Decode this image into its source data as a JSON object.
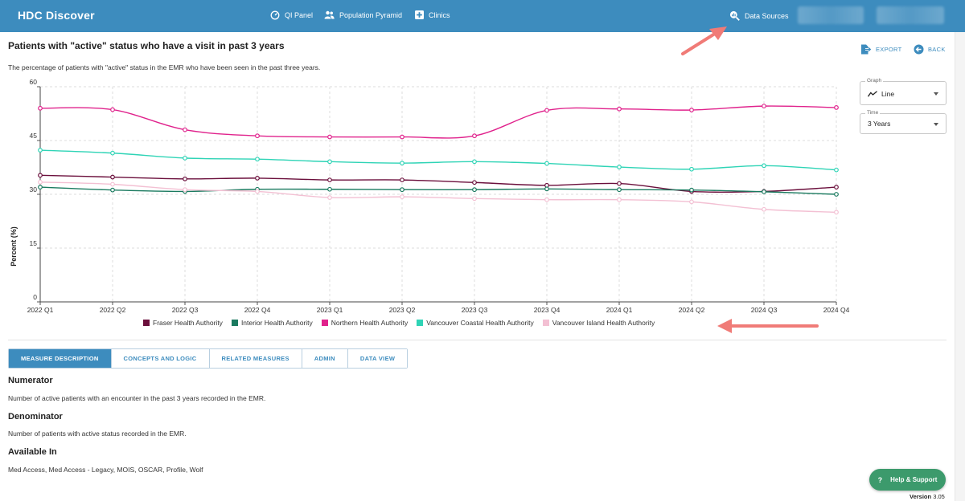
{
  "app": {
    "title": "HDC Discover"
  },
  "nav": {
    "qi_panel": "QI Panel",
    "population_pyramid": "Population Pyramid",
    "clinics": "Clinics",
    "data_sources": "Data Sources"
  },
  "page": {
    "title": "Patients with \"active\" status who have a visit in past 3 years",
    "subtitle": "The percentage of patients with \"active\" status in the EMR who have been seen in the past three years."
  },
  "actions": {
    "export": "EXPORT",
    "back": "BACK"
  },
  "controls": {
    "graph": {
      "label": "Graph",
      "value": "Line"
    },
    "time": {
      "label": "Time",
      "value": "3 Years"
    }
  },
  "chart_data": {
    "type": "line",
    "x": [
      "2022 Q1",
      "2022 Q2",
      "2022 Q3",
      "2022 Q4",
      "2023 Q1",
      "2023 Q2",
      "2023 Q3",
      "2023 Q4",
      "2024 Q1",
      "2024 Q2",
      "2024 Q3",
      "2024 Q4"
    ],
    "ylabel": "Percent (%)",
    "ylim": [
      0,
      60
    ],
    "yticks": [
      0,
      15,
      30,
      45,
      60
    ],
    "grid": true,
    "legend_position": "bottom",
    "series": [
      {
        "name": "Fraser Health Authority",
        "color": "#6b0f3c",
        "values": [
          35.3,
          34.8,
          34.3,
          34.5,
          34.0,
          34.0,
          33.3,
          32.5,
          33.0,
          30.8,
          30.8,
          32.0
        ]
      },
      {
        "name": "Interior Health Authority",
        "color": "#1a7a5f",
        "values": [
          32.0,
          31.2,
          30.8,
          31.4,
          31.4,
          31.3,
          31.3,
          31.5,
          31.3,
          31.2,
          30.7,
          30.0
        ]
      },
      {
        "name": "Northern Health Authority",
        "color": "#e0228c",
        "values": [
          54.0,
          53.6,
          48.0,
          46.3,
          46.0,
          46.0,
          46.3,
          53.4,
          53.8,
          53.5,
          54.6,
          54.2
        ]
      },
      {
        "name": "Vancouver Coastal Health Authority",
        "color": "#2fd4b6",
        "values": [
          42.3,
          41.5,
          40.1,
          39.8,
          39.1,
          38.7,
          39.1,
          38.6,
          37.6,
          37.0,
          38.0,
          36.8
        ]
      },
      {
        "name": "Vancouver Island Health Authority",
        "color": "#f3c0d3",
        "values": [
          33.4,
          32.8,
          31.3,
          30.8,
          29.1,
          29.3,
          28.8,
          28.5,
          28.5,
          27.9,
          25.8,
          25.0
        ]
      }
    ]
  },
  "tabs": [
    {
      "label": "MEASURE DESCRIPTION",
      "active": true
    },
    {
      "label": "CONCEPTS AND LOGIC",
      "active": false
    },
    {
      "label": "RELATED MEASURES",
      "active": false
    },
    {
      "label": "ADMIN",
      "active": false
    },
    {
      "label": "DATA VIEW",
      "active": false
    }
  ],
  "description": {
    "numerator_heading": "Numerator",
    "numerator_text": "Number of active patients with an encounter in the past 3 years recorded in the EMR.",
    "denominator_heading": "Denominator",
    "denominator_text": "Number of patients with active status recorded in the EMR.",
    "available_heading": "Available In",
    "available_text": "Med Access, Med Access - Legacy, MOIS, OSCAR, Profile, Wolf"
  },
  "footer": {
    "help": "Help & Support",
    "version_label": "Version",
    "version_number": "3.05"
  },
  "colors": {
    "primary": "#3d8cbe",
    "help_button": "#3c9a6c",
    "annotation_arrow": "#f07b77"
  }
}
